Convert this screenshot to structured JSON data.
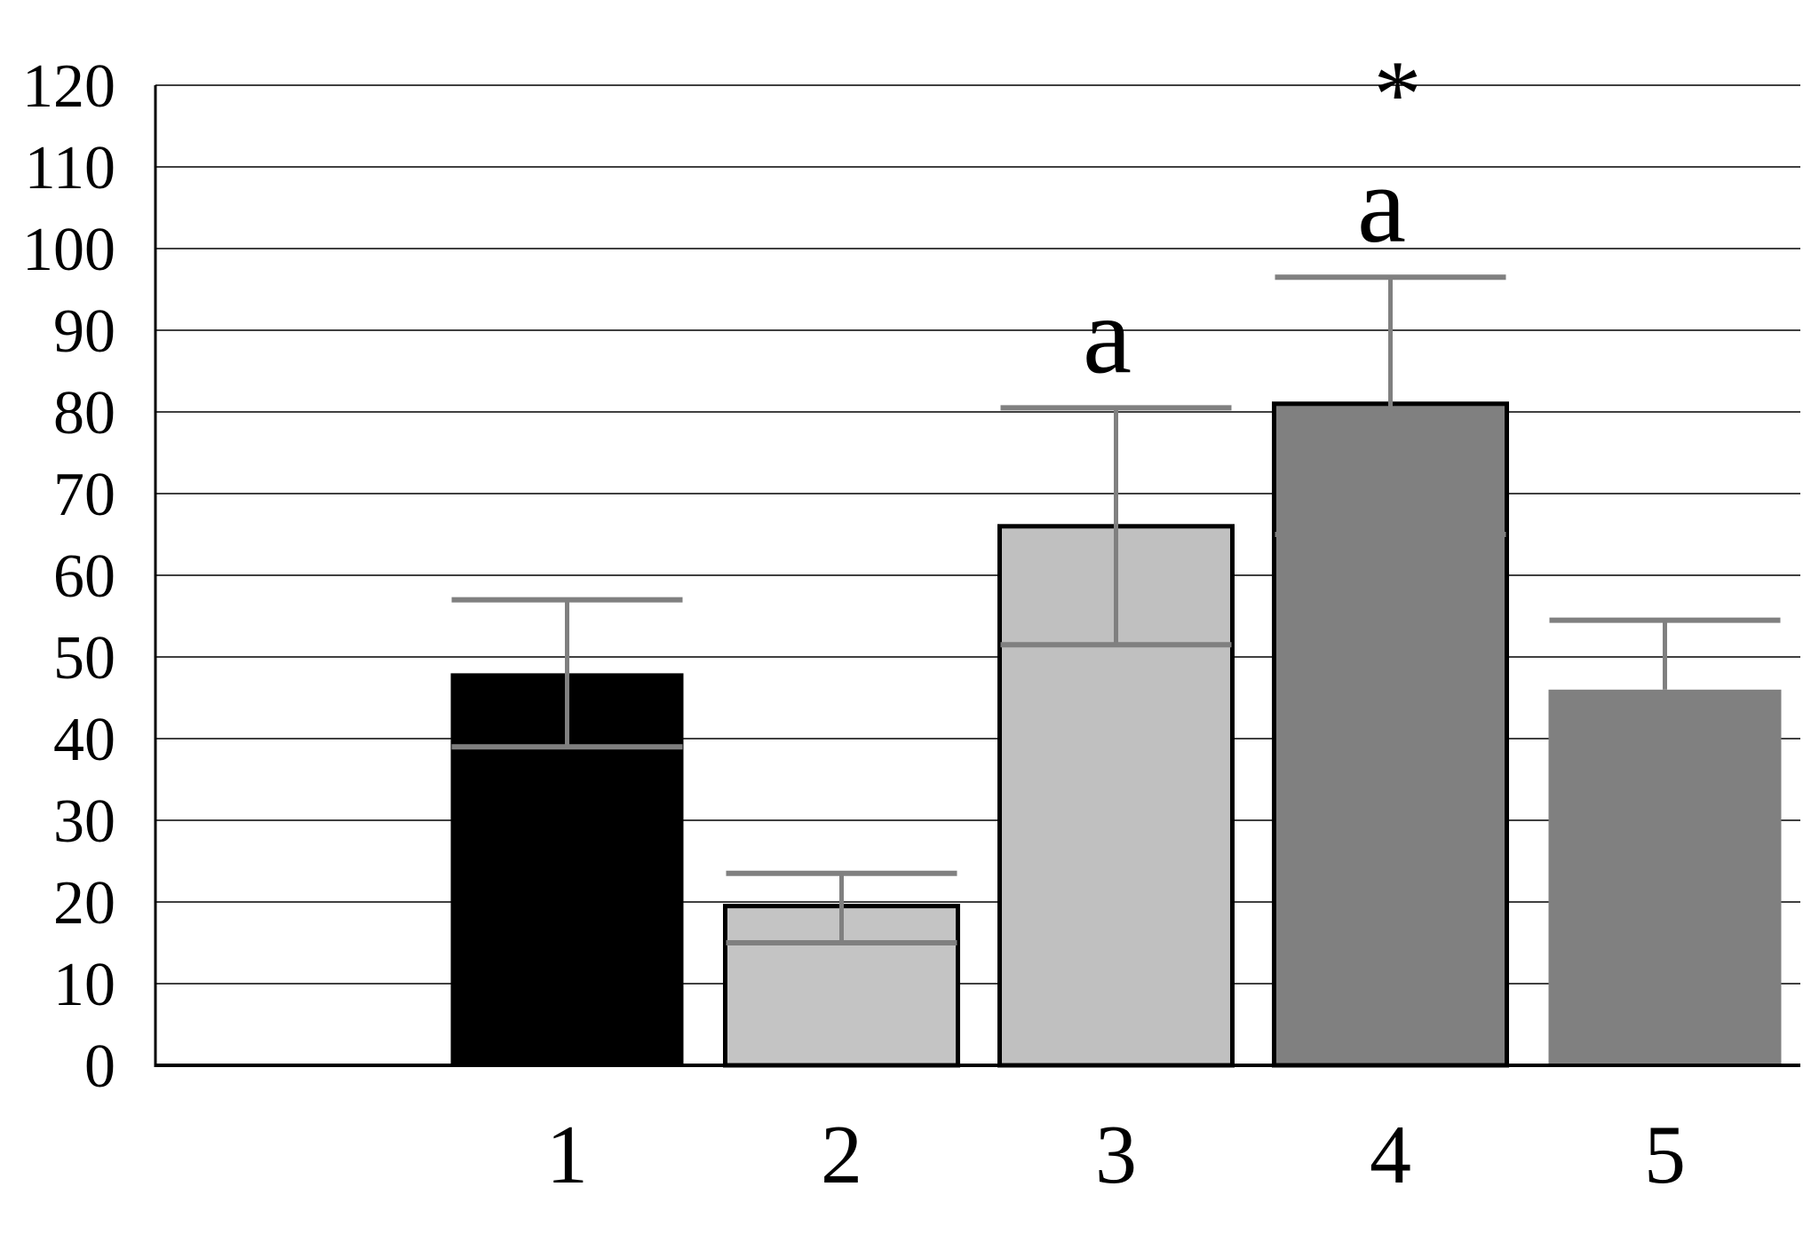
{
  "chart_data": {
    "type": "bar",
    "title": "",
    "xlabel": "",
    "ylabel": "",
    "ylim": [
      0,
      120
    ],
    "yticks": [
      "0",
      "10",
      "20",
      "30",
      "40",
      "50",
      "60",
      "70",
      "80",
      "90",
      "100",
      "110",
      "120"
    ],
    "grid": true,
    "legend": "none",
    "categories": [
      "",
      "1",
      "2",
      "3",
      "4",
      "5"
    ],
    "values": [
      null,
      48,
      19.5,
      66,
      81,
      46
    ],
    "error_low": [
      null,
      39,
      15,
      51.5,
      65,
      46
    ],
    "error_high": [
      null,
      57,
      23.5,
      80.5,
      96.5,
      54.5
    ],
    "annotations": [
      {
        "category": "3",
        "text": "a"
      },
      {
        "category": "4",
        "text": "a"
      },
      {
        "category": "4",
        "text": "*"
      }
    ],
    "colors": {
      "bars": [
        "#000000",
        "#000000",
        "#c4c4c4",
        "#c0c0c0",
        "#808080",
        "#808080"
      ],
      "bar_outline": [
        "none",
        "none",
        "#000000",
        "#000000",
        "#000000",
        "none"
      ],
      "error_bars": "#808080",
      "grid": "#000000",
      "axis": "#000000"
    }
  }
}
